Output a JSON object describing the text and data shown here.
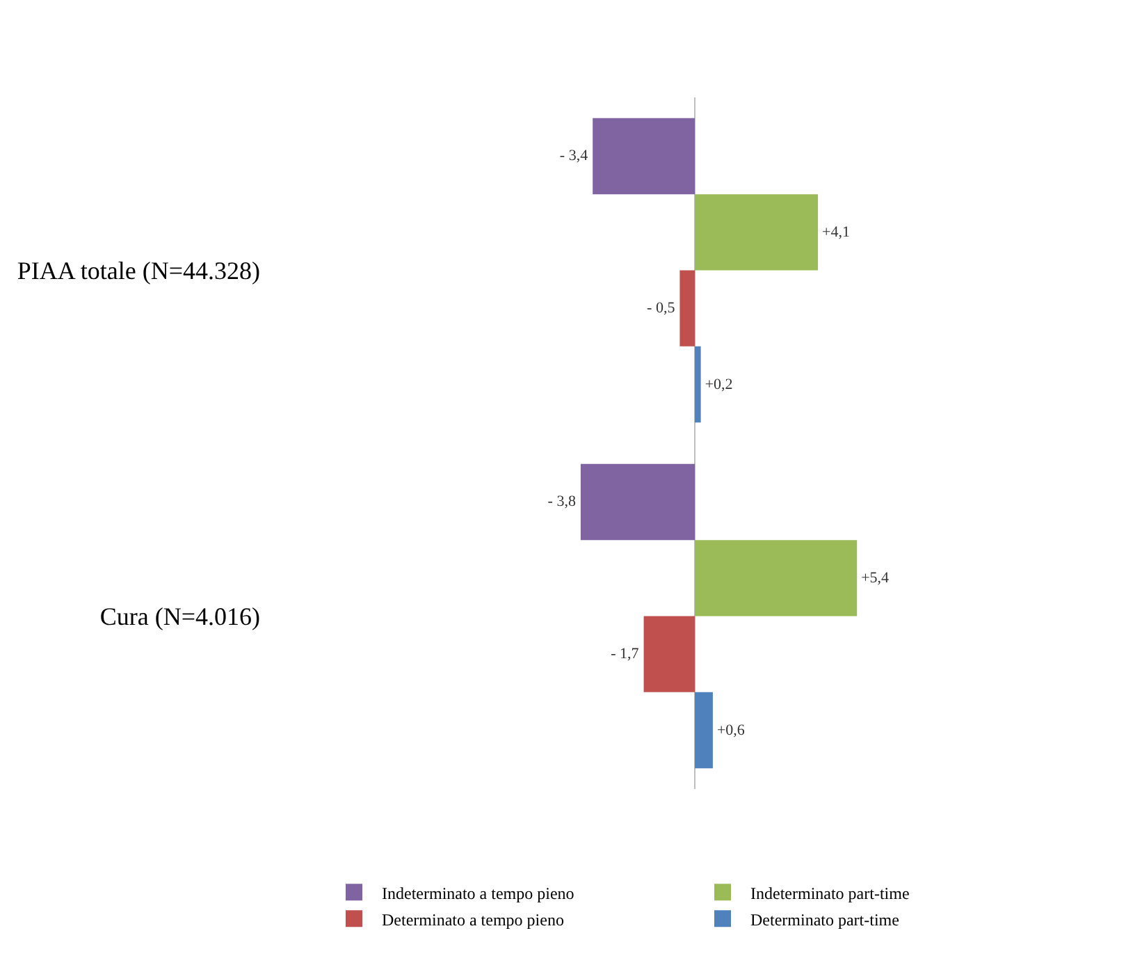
{
  "chart_data": {
    "type": "bar",
    "orientation": "horizontal",
    "categories": [
      "PIAA totale (N=44.328)",
      "Cura (N=4.016)"
    ],
    "series": [
      {
        "name": "Indeterminato a tempo pieno",
        "color": "#8064a2",
        "values": [
          -3.4,
          -3.8
        ],
        "value_labels": [
          "- 3,4",
          "- 3,8"
        ]
      },
      {
        "name": "Indeterminato part-time",
        "color": "#9bbb59",
        "values": [
          4.1,
          5.4
        ],
        "value_labels": [
          "+4,1",
          "+5,4"
        ]
      },
      {
        "name": "Determinato a tempo pieno",
        "color": "#c0504d",
        "values": [
          -0.5,
          -1.7
        ],
        "value_labels": [
          "- 0,5",
          "- 1,7"
        ]
      },
      {
        "name": "Determinato part-time",
        "color": "#4f81bd",
        "values": [
          0.2,
          0.6
        ],
        "value_labels": [
          "+0,2",
          "+0,6"
        ]
      }
    ],
    "legend": "bottom",
    "tick_labels": "y"
  }
}
